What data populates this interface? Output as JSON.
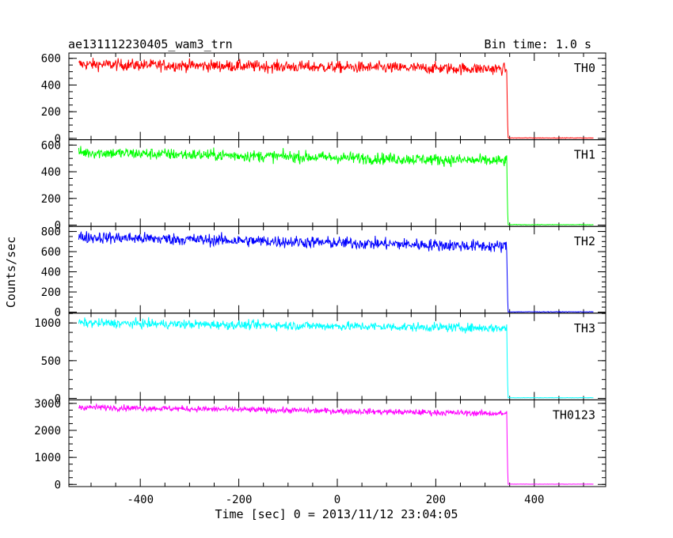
{
  "chart_data": {
    "type": "line",
    "title": "ae131112230405_wam3_trn",
    "subtitle": "Bin time: 1.0 s",
    "xlabel": "Time [sec] 0 = 2013/11/12 23:04:05",
    "ylabel": "Counts/sec",
    "xlim": [
      -545,
      545
    ],
    "x_ticks": [
      -400,
      -200,
      0,
      200,
      400
    ],
    "grid": false,
    "data_range": [
      -525,
      520
    ],
    "drop_time": 345,
    "panels": [
      {
        "name": "TH0",
        "color": "#ff0000",
        "ylim": [
          -10,
          640
        ],
        "y_ticks": [
          0,
          200,
          400,
          600
        ],
        "start_level": 555,
        "pre_drop_level": 520,
        "post_drop_level": 3,
        "noise": 22
      },
      {
        "name": "TH1",
        "color": "#00ff00",
        "ylim": [
          -10,
          640
        ],
        "y_ticks": [
          0,
          200,
          400,
          600
        ],
        "start_level": 545,
        "pre_drop_level": 480,
        "post_drop_level": 3,
        "noise": 22
      },
      {
        "name": "TH2",
        "color": "#0000ff",
        "ylim": [
          -10,
          850
        ],
        "y_ticks": [
          0,
          200,
          400,
          600,
          800
        ],
        "start_level": 745,
        "pre_drop_level": 650,
        "post_drop_level": 3,
        "noise": 30
      },
      {
        "name": "TH3",
        "color": "#00ffff",
        "ylim": [
          -20,
          1130
        ],
        "y_ticks": [
          0,
          500,
          1000
        ],
        "start_level": 1000,
        "pre_drop_level": 930,
        "post_drop_level": 8,
        "noise": 30
      },
      {
        "name": "TH0123",
        "color": "#ff00ff",
        "ylim": [
          -80,
          3130
        ],
        "y_ticks": [
          0,
          1000,
          2000,
          3000
        ],
        "start_level": 2860,
        "pre_drop_level": 2620,
        "post_drop_level": 10,
        "noise": 55
      }
    ]
  }
}
